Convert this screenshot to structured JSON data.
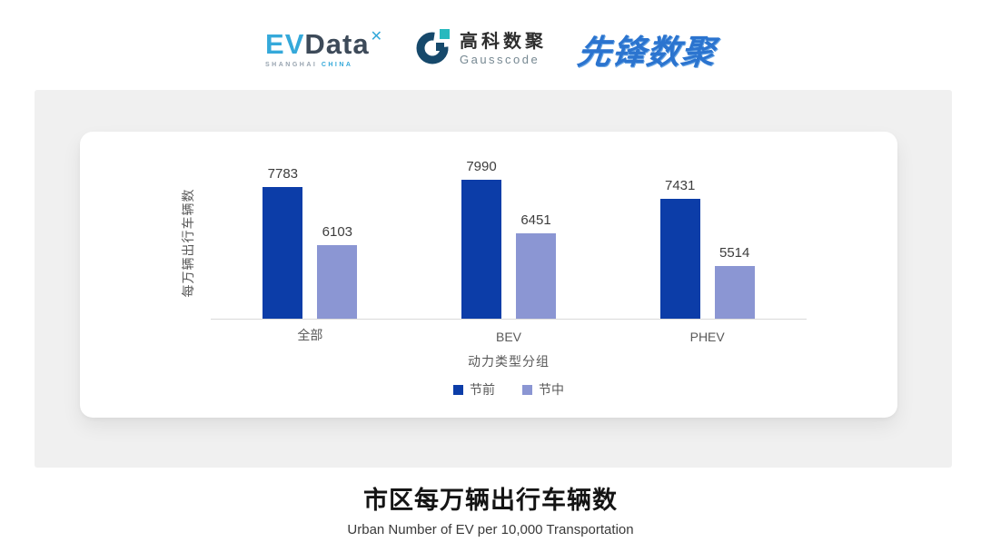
{
  "header": {
    "evdata": {
      "ev": "EV",
      "data": "Data",
      "mark": "✕",
      "sub_left": "SHANGHAI",
      "sub_right": "CHINA"
    },
    "gausscode": {
      "cn": "高科数聚",
      "en": "Gausscode"
    },
    "xianfeng": {
      "text": "先锋数聚"
    }
  },
  "chart_data": {
    "type": "bar",
    "title": "市区每万辆出行车辆数",
    "subtitle": "Urban Number of EV per 10,000 Transportation",
    "xlabel": "动力类型分组",
    "ylabel": "每万辆出行车辆数",
    "categories": [
      "全部",
      "BEV",
      "PHEV"
    ],
    "series": [
      {
        "name": "节前",
        "color": "#0c3da8",
        "values": [
          7783,
          7990,
          7431
        ]
      },
      {
        "name": "节中",
        "color": "#8b96d3",
        "values": [
          6103,
          6451,
          5514
        ]
      }
    ],
    "data_labels": true,
    "grid": false,
    "legend_position": "bottom",
    "ylim": [
      4000,
      8400
    ],
    "y_axis_ticks_visible": false
  },
  "colors": {
    "bar_dark": "#0c3da8",
    "bar_light": "#8b96d3",
    "panel_bg": "#f0f0f0",
    "card_bg": "#ffffff",
    "axis_line": "#d9d9d9",
    "axis_text": "#595959",
    "data_label_text": "#3d3d3d",
    "evdata_blue": "#35a9da",
    "evdata_dark": "#3d4a59",
    "gausscode_navy": "#16496b",
    "gausscode_teal": "#27b9be",
    "xianfeng_blue": "#2b74cf"
  }
}
